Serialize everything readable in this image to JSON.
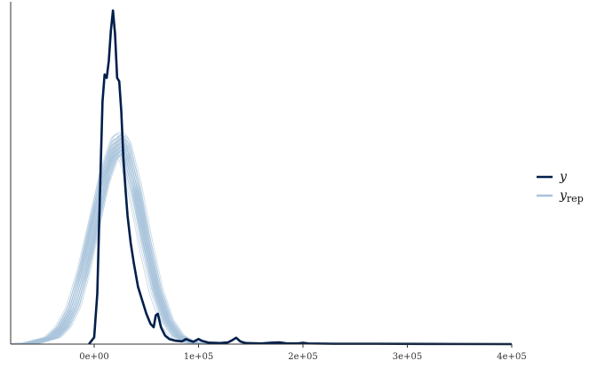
{
  "chart_data": {
    "type": "line",
    "subtype": "density-overlay",
    "title": "",
    "xlabel": "",
    "ylabel": "",
    "xlim": [
      -80000,
      400000
    ],
    "x_ticks": [
      0,
      100000,
      200000,
      300000,
      400000
    ],
    "x_tick_labels": [
      "0e+00",
      "1e+05",
      "2e+05",
      "3e+05",
      "4e+05"
    ],
    "grid": false,
    "legend_position": "right",
    "legend": [
      {
        "key": "y",
        "label": "y",
        "sub": "",
        "color": "#011f4b"
      },
      {
        "key": "yrep",
        "label": "y",
        "sub": "rep",
        "color": "#a8c3db"
      }
    ],
    "series": [
      {
        "key": "y",
        "color": "#011f4b",
        "points": [
          [
            -5000,
            0
          ],
          [
            0,
            0.02
          ],
          [
            3000,
            0.15
          ],
          [
            6000,
            0.5
          ],
          [
            8000,
            0.72
          ],
          [
            10000,
            0.8
          ],
          [
            12000,
            0.79
          ],
          [
            14000,
            0.84
          ],
          [
            16000,
            0.93
          ],
          [
            18000,
            0.99
          ],
          [
            20000,
            0.92
          ],
          [
            22000,
            0.79
          ],
          [
            24000,
            0.78
          ],
          [
            26000,
            0.69
          ],
          [
            28000,
            0.55
          ],
          [
            30000,
            0.46
          ],
          [
            32000,
            0.38
          ],
          [
            35000,
            0.3
          ],
          [
            38000,
            0.24
          ],
          [
            42000,
            0.17
          ],
          [
            46000,
            0.13
          ],
          [
            50000,
            0.09
          ],
          [
            54000,
            0.06
          ],
          [
            57000,
            0.05
          ],
          [
            59000,
            0.085
          ],
          [
            61000,
            0.09
          ],
          [
            64000,
            0.05
          ],
          [
            68000,
            0.025
          ],
          [
            72000,
            0.015
          ],
          [
            78000,
            0.01
          ],
          [
            84000,
            0.008
          ],
          [
            88000,
            0.015
          ],
          [
            92000,
            0.01
          ],
          [
            95000,
            0.007
          ],
          [
            100000,
            0.015
          ],
          [
            103000,
            0.01
          ],
          [
            110000,
            0.004
          ],
          [
            120000,
            0.003
          ],
          [
            128000,
            0.005
          ],
          [
            132000,
            0.011
          ],
          [
            136000,
            0.019
          ],
          [
            140000,
            0.008
          ],
          [
            145000,
            0.003
          ],
          [
            160000,
            0.002
          ],
          [
            170000,
            0.004
          ],
          [
            178000,
            0.005
          ],
          [
            185000,
            0.002
          ],
          [
            195000,
            0.002
          ],
          [
            200000,
            0.004
          ],
          [
            205000,
            0.002
          ],
          [
            230000,
            0.001
          ],
          [
            270000,
            0.001
          ],
          [
            320000,
            0.0005
          ],
          [
            400000,
            0
          ]
        ]
      },
      {
        "key": "yrep",
        "color": "#a8c3db",
        "draws": 40,
        "mean_peak_x": 25000,
        "peak_y_range": [
          0.56,
          0.63
        ],
        "points": [
          [
            -80000,
            0
          ],
          [
            -60000,
            0.003
          ],
          [
            -40000,
            0.02
          ],
          [
            -30000,
            0.05
          ],
          [
            -20000,
            0.11
          ],
          [
            -10000,
            0.22
          ],
          [
            0,
            0.36
          ],
          [
            10000,
            0.5
          ],
          [
            20000,
            0.59
          ],
          [
            25000,
            0.6
          ],
          [
            30000,
            0.58
          ],
          [
            40000,
            0.46
          ],
          [
            50000,
            0.3
          ],
          [
            60000,
            0.16
          ],
          [
            70000,
            0.07
          ],
          [
            80000,
            0.025
          ],
          [
            90000,
            0.008
          ],
          [
            100000,
            0.002
          ],
          [
            120000,
            0
          ]
        ]
      }
    ]
  }
}
